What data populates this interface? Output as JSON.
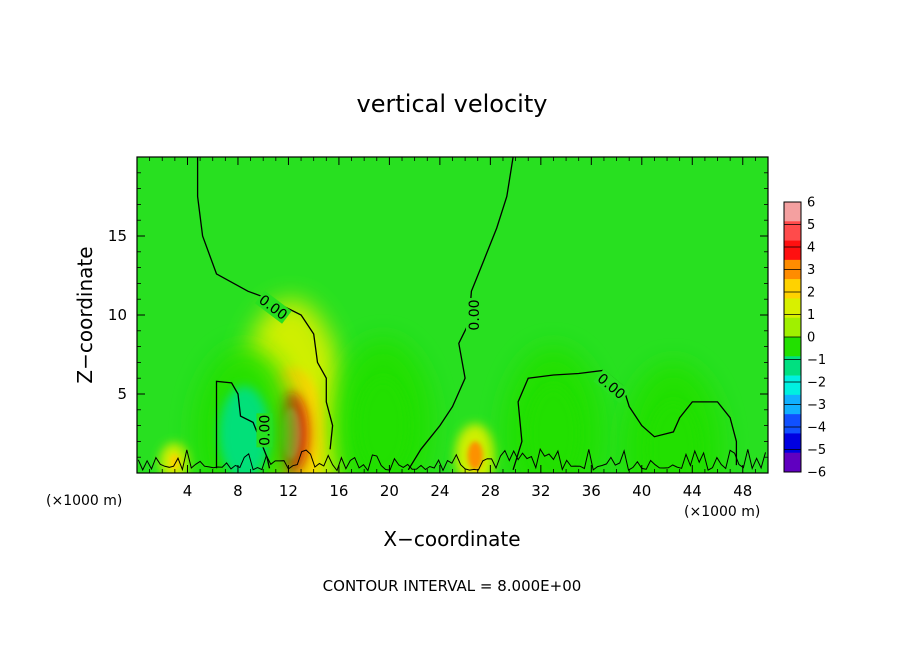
{
  "chart_data": {
    "type": "heatmap",
    "title": "vertical velocity",
    "xlabel": "X−coordinate",
    "ylabel": "Z−coordinate",
    "x_unit_label": "(×1000 m)",
    "x_unit_label_right": "(×1000 m)",
    "xlim": [
      0,
      50
    ],
    "ylim": [
      0,
      20
    ],
    "x_ticks": [
      4,
      8,
      12,
      16,
      20,
      24,
      28,
      32,
      36,
      40,
      44,
      48
    ],
    "y_ticks": [
      5,
      10,
      15
    ],
    "contour_level_label": "0.00",
    "contour_interval_text": "CONTOUR INTERVAL = 8.000E+00",
    "colorbar": {
      "ticks": [
        6,
        5,
        4,
        3,
        2,
        1,
        0,
        -1,
        -2,
        -3,
        -4,
        -5,
        -6
      ],
      "tick_labels": [
        "6",
        "5",
        "4",
        "3",
        "2",
        "1",
        "0",
        "−1",
        "−2",
        "−3",
        "−4",
        "−5",
        "−6"
      ],
      "colors": [
        "#f4a0a0",
        "#ff4b4b",
        "#ff1010",
        "#ff8c00",
        "#ffd200",
        "#d8f000",
        "#a0f000",
        "#22e000",
        "#00e080",
        "#00f0e0",
        "#10b0ff",
        "#1050ff",
        "#0000e0",
        "#6000c0"
      ]
    },
    "background_color": "#28e020",
    "features": [
      {
        "name": "strong-updraft",
        "x": 12.2,
        "z": 2.5,
        "value": 5.5
      },
      {
        "name": "weak-updraft-right",
        "x": 26.8,
        "z": 1.1,
        "value": 3.5
      },
      {
        "name": "weak-updraft-left",
        "x": 3.0,
        "z": 0.7,
        "value": 2.5
      },
      {
        "name": "downdraft-left",
        "x": 8.5,
        "z": 2.5,
        "value": -1.5
      },
      {
        "name": "downdraft-center",
        "x": 19.5,
        "z": 3.0,
        "value": -1.0
      },
      {
        "name": "downdraft-right",
        "x": 33.0,
        "z": 2.5,
        "value": -0.5
      },
      {
        "name": "downdraft-far-right",
        "x": 42.5,
        "z": 1.5,
        "value": -1.0
      }
    ],
    "contours": [
      {
        "level": 0,
        "points": [
          [
            4.8,
            20
          ],
          [
            4.8,
            17.5
          ],
          [
            5.2,
            15.0
          ],
          [
            6.3,
            12.6
          ],
          [
            8.8,
            11.5
          ],
          [
            10.5,
            11.0
          ],
          [
            13.0,
            10.0
          ],
          [
            14.0,
            8.8
          ],
          [
            14.3,
            7.0
          ],
          [
            15.0,
            6.0
          ],
          [
            15.0,
            4.5
          ],
          [
            15.5,
            3.0
          ],
          [
            15.3,
            1.5
          ]
        ],
        "label_at": [
          10.8,
          10.5
        ],
        "label_angle": 37
      },
      {
        "level": 0,
        "points": [
          [
            29.8,
            20
          ],
          [
            29.3,
            17.5
          ],
          [
            28.5,
            15.5
          ],
          [
            27.5,
            13.5
          ],
          [
            26.5,
            11.5
          ],
          [
            26.3,
            9.5
          ],
          [
            25.5,
            8.2
          ],
          [
            26.0,
            6.0
          ],
          [
            25.0,
            4.2
          ],
          [
            24.0,
            3.0
          ],
          [
            22.5,
            1.5
          ],
          [
            21.5,
            0.2
          ]
        ],
        "label_at": [
          26.7,
          10.0
        ],
        "label_angle": -90
      },
      {
        "level": 0,
        "points": [
          [
            29.8,
            0.2
          ],
          [
            30.5,
            2.0
          ],
          [
            30.2,
            4.5
          ],
          [
            31.0,
            6.0
          ],
          [
            33.0,
            6.2
          ],
          [
            35.0,
            6.3
          ],
          [
            37.0,
            6.5
          ],
          [
            38.5,
            5.5
          ],
          [
            39.0,
            4.2
          ],
          [
            40.0,
            3.0
          ],
          [
            41.0,
            2.3
          ],
          [
            42.5,
            2.6
          ],
          [
            43.0,
            3.5
          ],
          [
            44.0,
            4.5
          ],
          [
            46.0,
            4.5
          ],
          [
            47.0,
            3.5
          ],
          [
            47.5,
            2.0
          ],
          [
            47.5,
            0.5
          ]
        ],
        "label_at": [
          37.6,
          5.5
        ],
        "label_angle": 40
      },
      {
        "level": 0,
        "points": [
          [
            6.3,
            0.3
          ],
          [
            6.3,
            2.0
          ],
          [
            6.3,
            4.0
          ],
          [
            6.3,
            5.8
          ],
          [
            7.5,
            5.7
          ],
          [
            8.0,
            5.0
          ],
          [
            8.2,
            3.6
          ],
          [
            9.2,
            3.2
          ],
          [
            9.8,
            2.0
          ],
          [
            10.3,
            1.0
          ],
          [
            10.5,
            0.3
          ]
        ],
        "label_at": [
          10.1,
          2.7
        ],
        "label_angle": -90
      }
    ]
  }
}
